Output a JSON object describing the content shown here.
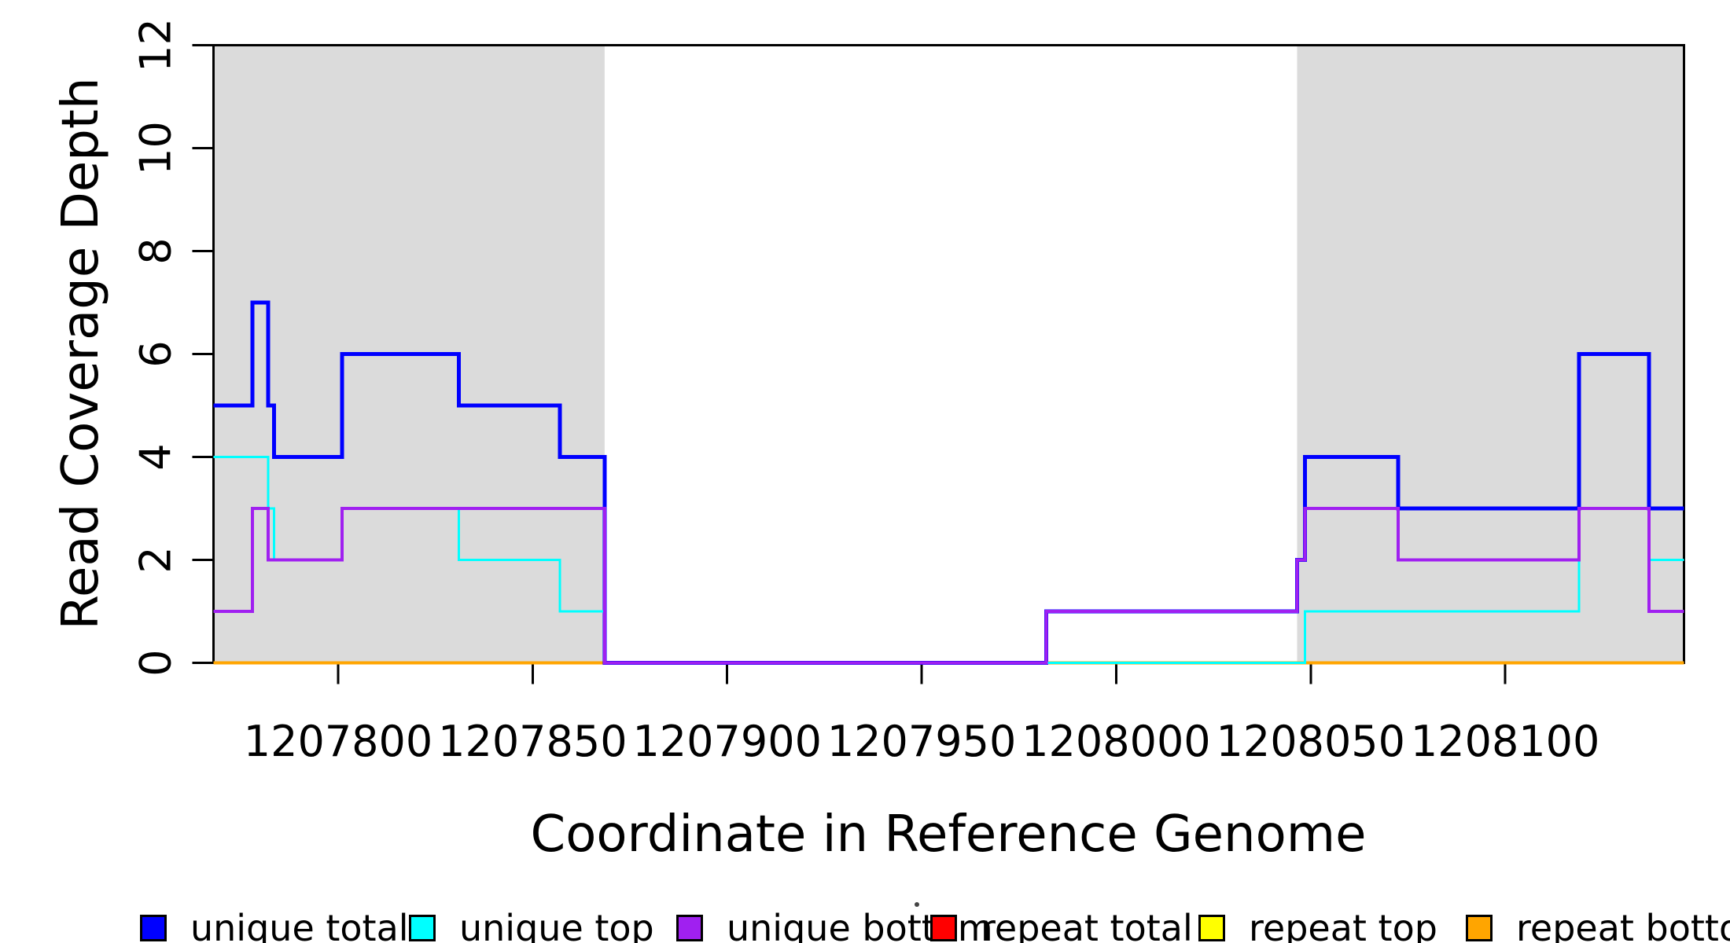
{
  "figure": {
    "background": "#ffffff",
    "axis_color": "#000000",
    "shaded_region_color": "#DBDBDB"
  },
  "chart_data": {
    "type": "line",
    "subtype": "step-coverage-plot",
    "xlabel": "Coordinate in Reference Genome",
    "ylabel": "Read Coverage Depth",
    "xlim": [
      1207768,
      1208146
    ],
    "ylim": [
      0,
      12
    ],
    "x_ticks": [
      1207800,
      1207850,
      1207900,
      1207950,
      1208000,
      1208050,
      1208100
    ],
    "y_ticks": [
      0,
      2,
      4,
      6,
      8,
      10,
      12
    ],
    "grid": false,
    "legend_position": "bottom",
    "shaded_regions": [
      {
        "x0": 1207768,
        "x1": 1207868.5,
        "y0": 0,
        "y1": 12
      },
      {
        "x0": 1208046.5,
        "x1": 1208146,
        "y0": 0,
        "y1": 12
      }
    ],
    "series": [
      {
        "name": "unique total",
        "color": "#0000FF",
        "line_width": 5,
        "zorder": 4,
        "steps": [
          [
            1207768,
            5
          ],
          [
            1207778,
            7
          ],
          [
            1207782,
            5
          ],
          [
            1207783.5,
            4
          ],
          [
            1207801,
            6
          ],
          [
            1207831,
            5
          ],
          [
            1207857,
            4
          ],
          [
            1207868.5,
            0
          ],
          [
            1207982,
            1
          ],
          [
            1208046.5,
            2
          ],
          [
            1208048.5,
            4
          ],
          [
            1208072.5,
            3
          ],
          [
            1208119,
            6
          ],
          [
            1208137,
            3
          ]
        ]
      },
      {
        "name": "unique top",
        "color": "#00FFFF",
        "line_width": 3,
        "zorder": 5,
        "steps": [
          [
            1207768,
            4
          ],
          [
            1207782,
            3
          ],
          [
            1207783.5,
            2
          ],
          [
            1207801,
            3
          ],
          [
            1207831,
            2
          ],
          [
            1207857,
            1
          ],
          [
            1207868.5,
            0
          ],
          [
            1208048.5,
            1
          ],
          [
            1208119,
            3
          ],
          [
            1208137,
            2
          ]
        ]
      },
      {
        "name": "unique bottom",
        "color": "#A020F0",
        "line_width": 4,
        "zorder": 6,
        "steps": [
          [
            1207768,
            1
          ],
          [
            1207778,
            3
          ],
          [
            1207782,
            2
          ],
          [
            1207801,
            3
          ],
          [
            1207868.5,
            0
          ],
          [
            1207982,
            1
          ],
          [
            1208046.5,
            2
          ],
          [
            1208048.5,
            3
          ],
          [
            1208072.5,
            2
          ],
          [
            1208119,
            3
          ],
          [
            1208137,
            1
          ]
        ]
      },
      {
        "name": "repeat total",
        "color": "#FF0000",
        "line_width": 3,
        "zorder": 1,
        "steps": [
          [
            1207768,
            0
          ]
        ]
      },
      {
        "name": "repeat top",
        "color": "#FFFF00",
        "line_width": 3,
        "zorder": 2,
        "steps": [
          [
            1207768,
            0
          ]
        ]
      },
      {
        "name": "repeat bottom",
        "color": "#FFA500",
        "line_width": 4,
        "zorder": 3,
        "steps": [
          [
            1207768,
            0
          ]
        ]
      }
    ]
  }
}
